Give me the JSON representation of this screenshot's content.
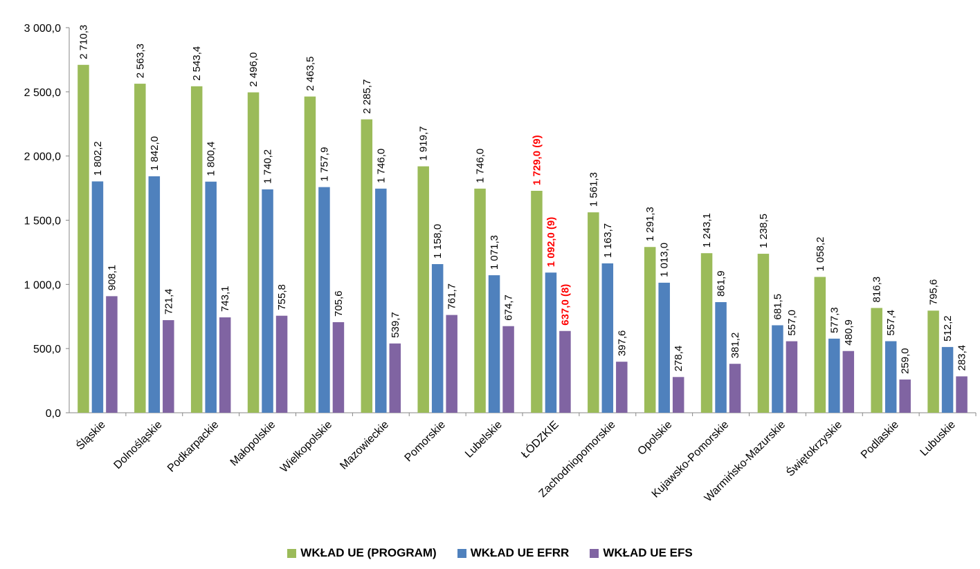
{
  "chart_data": {
    "type": "bar",
    "categories": [
      "Śląskie",
      "Dolnośląskie",
      "Podkarpackie",
      "Małopolskie",
      "Wielkopolskie",
      "Mazowieckie",
      "Pomorskie",
      "Lubelskie",
      "ŁÓDZKIE",
      "Zachodniopomorskie",
      "Opolskie",
      "Kujawsko-Pomorskie",
      "Warmińsko-Mazurskie",
      "Świętokrzyskie",
      "Podlaskie",
      "Lubuskie"
    ],
    "ylim": [
      0,
      3000
    ],
    "yticks": [
      "0,0",
      "500,0",
      "1 000,0",
      "1 500,0",
      "2 000,0",
      "2 500,0",
      "3 000,0"
    ],
    "highlight_index": 8,
    "highlight_color": "#ff0000",
    "series": [
      {
        "name": "WKŁAD UE (PROGRAM)",
        "color": "#9bbb59",
        "values": [
          2710.3,
          2563.3,
          2543.4,
          2496.0,
          2463.5,
          2285.7,
          1919.7,
          1746.0,
          1729.0,
          1561.3,
          1291.3,
          1243.1,
          1238.5,
          1058.2,
          816.3,
          795.6
        ],
        "labels": [
          "2 710,3",
          "2 563,3",
          "2 543,4",
          "2 496,0",
          "2 463,5",
          "2 285,7",
          "1 919,7",
          "1 746,0",
          "1 729,0 (9)",
          "1 561,3",
          "1 291,3",
          "1 243,1",
          "1 238,5",
          "1 058,2",
          "816,3",
          "795,6"
        ]
      },
      {
        "name": "WKŁAD UE EFRR",
        "color": "#4f81bd",
        "values": [
          1802.2,
          1842.0,
          1800.4,
          1740.2,
          1757.9,
          1746.0,
          1158.0,
          1071.3,
          1092.0,
          1163.7,
          1013.0,
          861.9,
          681.5,
          577.3,
          557.4,
          512.2
        ],
        "labels": [
          "1 802,2",
          "1 842,0",
          "1 800,4",
          "1 740,2",
          "1 757,9",
          "1 746,0",
          "1 158,0",
          "1 071,3",
          "1 092,0 (9)",
          "1 163,7",
          "1 013,0",
          "861,9",
          "681,5",
          "577,3",
          "557,4",
          "512,2"
        ]
      },
      {
        "name": "WKŁAD UE EFS",
        "color": "#8064a2",
        "values": [
          908.1,
          721.4,
          743.1,
          755.8,
          705.6,
          539.7,
          761.7,
          674.7,
          637.0,
          397.6,
          278.4,
          381.2,
          557.0,
          480.9,
          259.0,
          283.4
        ],
        "labels": [
          "908,1",
          "721,4",
          "743,1",
          "755,8",
          "705,6",
          "539,7",
          "761,7",
          "674,7",
          "637,0 (8)",
          "397,6",
          "278,4",
          "381,2",
          "557,0",
          "480,9",
          "259,0",
          "283,4"
        ]
      }
    ]
  }
}
